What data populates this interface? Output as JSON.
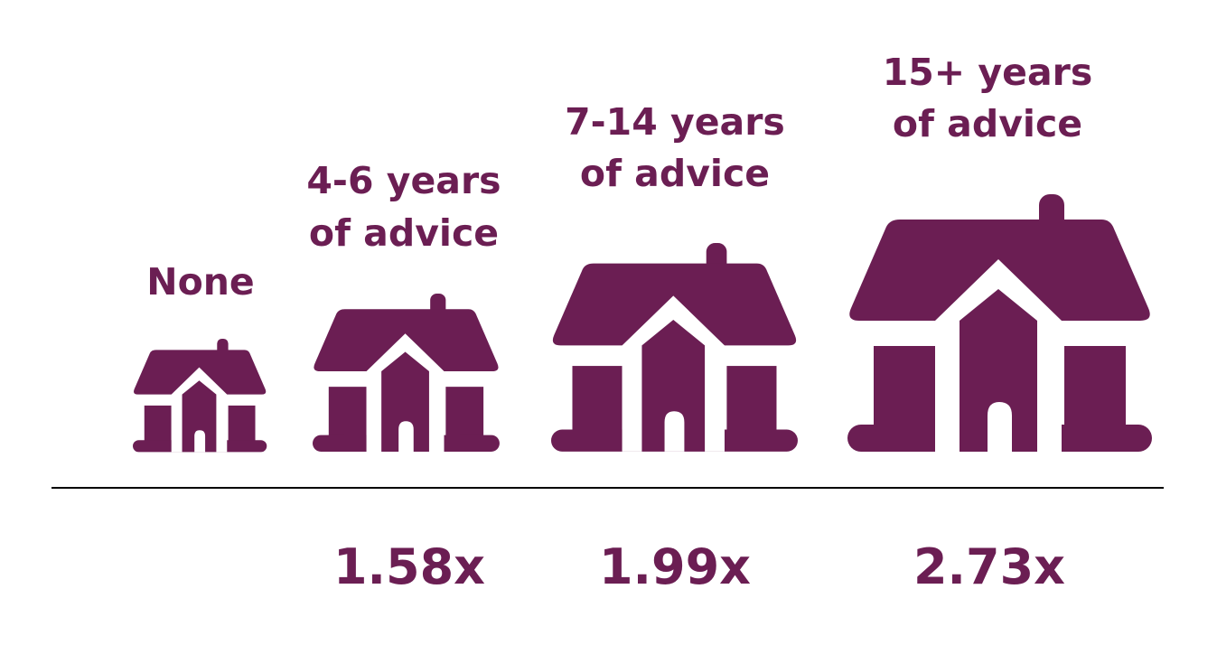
{
  "items": [
    {
      "label": [
        "None"
      ]
    },
    {
      "label": [
        "4-6 years",
        "of advice"
      ],
      "value": "1.58x"
    },
    {
      "label": [
        "7-14 years",
        "of advice"
      ],
      "value": "1.99x"
    },
    {
      "label": [
        "15+ years",
        "of advice"
      ],
      "value": "2.73x"
    }
  ]
}
